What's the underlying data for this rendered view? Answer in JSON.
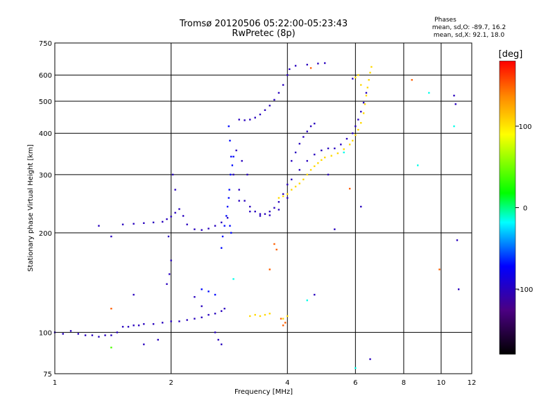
{
  "title_line1": "Tromsø 20120506 05:22:00-05:23:43",
  "title_line2": "RwPretec (8p)",
  "phases": {
    "heading": "Phases",
    "line_o": "mean, sd,O: -89.7, 16.2",
    "line_x": "mean, sd,X:  92.1, 18.0"
  },
  "colorbar": {
    "label": "[deg]",
    "range": [
      -180,
      180
    ],
    "ticks": [
      {
        "value": 100,
        "label": "100"
      },
      {
        "value": 0,
        "label": "0"
      },
      {
        "value": -100,
        "label": "-100"
      }
    ]
  },
  "chart_data": {
    "type": "scatter",
    "xlabel": "Frequency [MHz]",
    "ylabel": "Stationary phase Virtual Height [km]",
    "xscale": "log",
    "yscale": "log",
    "xlim": [
      1,
      12
    ],
    "ylim": [
      75,
      750
    ],
    "x_ticks": [
      {
        "value": 1,
        "label": "1"
      },
      {
        "value": 2,
        "label": "2"
      },
      {
        "value": 4,
        "label": "4"
      },
      {
        "value": 6,
        "label": "6"
      },
      {
        "value": 8,
        "label": "8"
      },
      {
        "value": 10,
        "label": "10"
      },
      {
        "value": 12,
        "label": "12"
      }
    ],
    "y_ticks": [
      {
        "value": 75,
        "label": "75"
      },
      {
        "value": 100,
        "label": "100"
      },
      {
        "value": 200,
        "label": "200"
      },
      {
        "value": 300,
        "label": "300"
      },
      {
        "value": 400,
        "label": "400"
      },
      {
        "value": 500,
        "label": "500"
      },
      {
        "value": 600,
        "label": "600"
      },
      {
        "value": 750,
        "label": "750"
      }
    ],
    "grid": true,
    "series": [
      {
        "color_phase": -100,
        "points": [
          [
            1.0,
            100
          ],
          [
            1.05,
            99
          ],
          [
            1.1,
            101
          ],
          [
            1.15,
            99
          ],
          [
            1.2,
            98
          ],
          [
            1.25,
            98
          ],
          [
            1.3,
            97
          ],
          [
            1.35,
            98
          ],
          [
            1.4,
            98
          ],
          [
            1.45,
            100
          ],
          [
            1.5,
            104
          ],
          [
            1.55,
            104
          ],
          [
            1.6,
            105
          ],
          [
            1.65,
            105
          ],
          [
            1.7,
            106
          ],
          [
            1.8,
            106
          ],
          [
            1.9,
            107
          ],
          [
            2.0,
            108
          ],
          [
            2.1,
            108
          ],
          [
            2.2,
            109
          ],
          [
            2.3,
            110
          ],
          [
            2.4,
            111
          ],
          [
            2.5,
            113
          ],
          [
            2.6,
            114
          ],
          [
            2.7,
            116
          ],
          [
            2.75,
            118
          ],
          [
            1.5,
            212
          ],
          [
            1.6,
            213
          ],
          [
            1.7,
            214
          ],
          [
            1.8,
            215
          ],
          [
            1.9,
            216
          ],
          [
            1.95,
            220
          ],
          [
            2.0,
            224
          ],
          [
            2.05,
            230
          ],
          [
            2.1,
            236
          ],
          [
            2.15,
            225
          ],
          [
            2.2,
            212
          ],
          [
            2.3,
            205
          ],
          [
            2.4,
            204
          ],
          [
            2.5,
            206
          ],
          [
            2.6,
            210
          ],
          [
            2.7,
            215
          ],
          [
            2.8,
            222
          ],
          [
            2.0,
            165
          ],
          [
            1.98,
            150
          ],
          [
            1.95,
            140
          ],
          [
            1.97,
            195
          ],
          [
            2.02,
            300
          ],
          [
            2.05,
            270
          ],
          [
            2.9,
            300
          ],
          [
            3.0,
            270
          ],
          [
            3.1,
            250
          ],
          [
            3.2,
            240
          ],
          [
            3.3,
            232
          ],
          [
            3.4,
            228
          ],
          [
            3.5,
            228
          ],
          [
            3.6,
            232
          ],
          [
            3.7,
            238
          ],
          [
            3.8,
            248
          ],
          [
            3.9,
            262
          ],
          [
            4.0,
            280
          ],
          [
            3.0,
            250
          ],
          [
            3.2,
            232
          ],
          [
            3.4,
            225
          ],
          [
            3.6,
            226
          ],
          [
            3.8,
            235
          ],
          [
            4.0,
            255
          ],
          [
            3.0,
            440
          ],
          [
            3.1,
            438
          ],
          [
            3.2,
            440
          ],
          [
            3.3,
            446
          ],
          [
            3.4,
            456
          ],
          [
            3.5,
            470
          ],
          [
            3.6,
            485
          ],
          [
            3.7,
            505
          ],
          [
            3.8,
            530
          ],
          [
            3.9,
            560
          ],
          [
            4.0,
            600
          ],
          [
            4.05,
            625
          ],
          [
            4.2,
            640
          ],
          [
            4.5,
            645
          ],
          [
            4.8,
            650
          ],
          [
            5.0,
            652
          ],
          [
            2.95,
            355
          ],
          [
            3.05,
            330
          ],
          [
            3.15,
            300
          ],
          [
            4.1,
            330
          ],
          [
            4.2,
            350
          ],
          [
            4.3,
            372
          ],
          [
            4.4,
            390
          ],
          [
            4.5,
            405
          ],
          [
            4.6,
            420
          ],
          [
            4.7,
            428
          ],
          [
            4.1,
            290
          ],
          [
            4.3,
            310
          ],
          [
            4.5,
            330
          ],
          [
            4.7,
            345
          ],
          [
            4.9,
            355
          ],
          [
            5.1,
            360
          ],
          [
            5.3,
            360
          ],
          [
            5.5,
            370
          ],
          [
            5.7,
            385
          ],
          [
            5.9,
            400
          ],
          [
            6.0,
            420
          ],
          [
            6.1,
            440
          ],
          [
            6.2,
            465
          ],
          [
            6.3,
            495
          ],
          [
            6.4,
            530
          ],
          [
            1.3,
            210
          ],
          [
            1.4,
            195
          ],
          [
            1.6,
            130
          ],
          [
            1.7,
            92
          ],
          [
            1.85,
            95
          ],
          [
            2.3,
            128
          ],
          [
            2.4,
            120
          ],
          [
            4.7,
            130
          ],
          [
            5.1,
            300
          ],
          [
            5.9,
            585
          ],
          [
            6.55,
            83
          ],
          [
            10.8,
            520
          ],
          [
            10.9,
            490
          ],
          [
            11.0,
            190
          ],
          [
            11.1,
            135
          ],
          [
            6.2,
            240
          ],
          [
            5.3,
            205
          ],
          [
            2.6,
            100
          ],
          [
            2.65,
            95
          ],
          [
            2.7,
            92
          ]
        ]
      },
      {
        "color_phase": -70,
        "points": [
          [
            2.82,
            420
          ],
          [
            2.84,
            380
          ],
          [
            2.86,
            340
          ],
          [
            2.85,
            300
          ],
          [
            2.83,
            270
          ],
          [
            2.82,
            255
          ],
          [
            2.8,
            240
          ],
          [
            2.78,
            225
          ],
          [
            2.75,
            210
          ],
          [
            2.72,
            195
          ],
          [
            2.7,
            180
          ],
          [
            2.9,
            340
          ],
          [
            2.88,
            320
          ],
          [
            2.86,
            200
          ],
          [
            2.84,
            210
          ],
          [
            2.4,
            135
          ],
          [
            2.5,
            133
          ],
          [
            2.6,
            130
          ]
        ]
      },
      {
        "color_phase": 105,
        "points": [
          [
            3.8,
            255
          ],
          [
            3.9,
            258
          ],
          [
            4.0,
            262
          ],
          [
            4.1,
            270
          ],
          [
            4.2,
            276
          ],
          [
            4.3,
            282
          ],
          [
            4.4,
            290
          ],
          [
            4.5,
            300
          ],
          [
            4.6,
            310
          ],
          [
            4.7,
            318
          ],
          [
            4.8,
            325
          ],
          [
            4.9,
            332
          ],
          [
            5.0,
            338
          ],
          [
            5.2,
            342
          ],
          [
            5.4,
            348
          ],
          [
            5.6,
            358
          ],
          [
            5.8,
            370
          ],
          [
            5.9,
            380
          ],
          [
            6.0,
            395
          ],
          [
            6.1,
            410
          ],
          [
            6.2,
            430
          ],
          [
            6.3,
            460
          ],
          [
            6.35,
            490
          ],
          [
            6.4,
            520
          ],
          [
            6.45,
            550
          ],
          [
            6.5,
            580
          ],
          [
            6.55,
            610
          ],
          [
            6.6,
            635
          ],
          [
            3.2,
            112
          ],
          [
            3.3,
            113
          ],
          [
            3.4,
            112
          ],
          [
            3.5,
            113
          ],
          [
            3.6,
            114
          ],
          [
            3.9,
            110
          ],
          [
            4.0,
            112
          ],
          [
            6.0,
            590
          ],
          [
            6.1,
            600
          ],
          [
            6.2,
            560
          ]
        ]
      },
      {
        "color_phase": 150,
        "points": [
          [
            3.7,
            185
          ],
          [
            3.75,
            178
          ],
          [
            3.6,
            155
          ],
          [
            3.85,
            110
          ],
          [
            3.9,
            105
          ],
          [
            4.6,
            630
          ],
          [
            8.4,
            580
          ],
          [
            9.9,
            155
          ],
          [
            5.8,
            272
          ],
          [
            1.4,
            118
          ],
          [
            3.95,
            107
          ]
        ]
      },
      {
        "color_phase": -15,
        "points": [
          [
            6.0,
            78
          ],
          [
            4.5,
            125
          ],
          [
            8.7,
            320
          ],
          [
            10.8,
            420
          ],
          [
            2.9,
            145
          ],
          [
            9.3,
            530
          ],
          [
            5.6,
            350
          ]
        ]
      },
      {
        "color_phase": 40,
        "points": [
          [
            1.4,
            90
          ]
        ]
      }
    ]
  }
}
